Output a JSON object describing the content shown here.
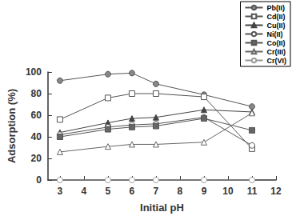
{
  "chart_data": {
    "type": "line",
    "x_label": "Initial pH",
    "y_label": "Adsorption (%)",
    "xlim": [
      2.5,
      12
    ],
    "xticks": [
      3,
      4,
      5,
      6,
      7,
      8,
      9,
      10,
      11,
      12
    ],
    "ylim": [
      0,
      100
    ],
    "yticks": [
      0,
      20,
      40,
      60,
      80,
      100
    ],
    "grid": false,
    "legend": "upper right",
    "x": [
      3,
      5,
      6,
      7,
      9,
      11
    ],
    "series": [
      {
        "name": "Pb(II)",
        "color": "#555555",
        "marker": "filled circle",
        "values": [
          92,
          98,
          99,
          89,
          79,
          68
        ]
      },
      {
        "name": "Cd(II)",
        "color": "#555555",
        "marker": "open square",
        "values": [
          56,
          76,
          80,
          80,
          77,
          29
        ]
      },
      {
        "name": "Cu(II)",
        "color": "#444444",
        "marker": "filled triangle",
        "values": [
          44,
          53,
          57,
          58,
          65,
          63
        ]
      },
      {
        "name": "Ni(II)",
        "color": "#555555",
        "marker": "open circle",
        "values": [
          42,
          49,
          51,
          52,
          58,
          32
        ]
      },
      {
        "name": "Co(II)",
        "color": "#555555",
        "marker": "filled square",
        "values": [
          40,
          47,
          49,
          50,
          57,
          46
        ]
      },
      {
        "name": "Cr(III)",
        "color": "#666666",
        "marker": "open triangle",
        "values": [
          26,
          31,
          33,
          33,
          35,
          62
        ]
      },
      {
        "name": "Cr(VI)",
        "color": "#999999",
        "marker": "open circle",
        "values": [
          0,
          0,
          0,
          0,
          0,
          0
        ]
      }
    ]
  }
}
